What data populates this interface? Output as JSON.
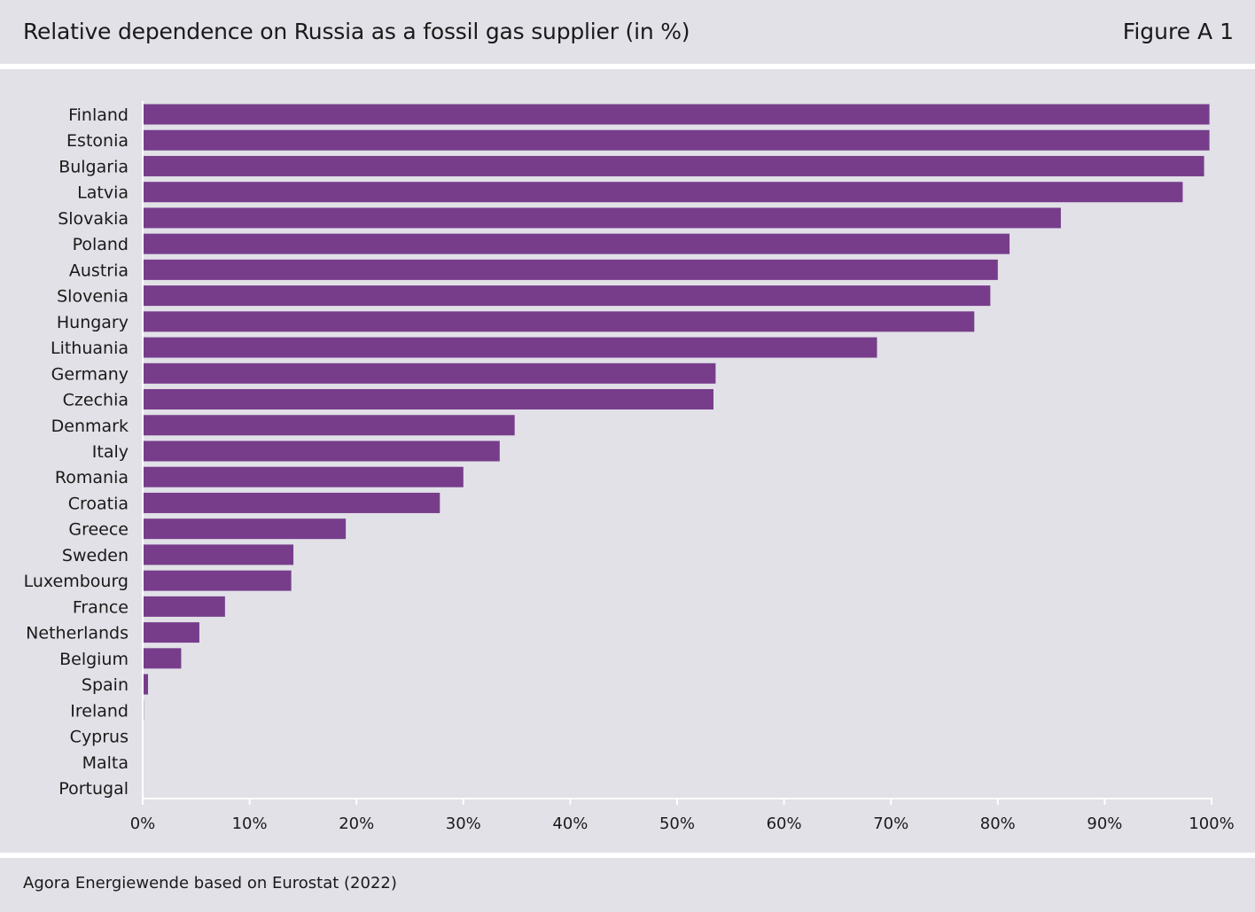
{
  "header": {
    "title": "Relative dependence on Russia as a fossil gas supplier (in %)",
    "figure_label": "Figure A 1"
  },
  "footer": {
    "source": "Agora Energiewende based on Eurostat (2022)"
  },
  "colors": {
    "bar": "#773d8b",
    "panel_background": "#e1e1e7",
    "axis": "#ffffff"
  },
  "chart_data": {
    "type": "bar",
    "orientation": "horizontal",
    "title": "Relative dependence on Russia as a fossil gas supplier (in %)",
    "xlabel": "",
    "ylabel": "",
    "xlim": [
      0,
      100
    ],
    "x_ticks": [
      "0%",
      "10%",
      "20%",
      "30%",
      "40%",
      "50%",
      "60%",
      "70%",
      "80%",
      "90%",
      "100%"
    ],
    "grid": false,
    "legend": "none",
    "categories": [
      "Finland",
      "Estonia",
      "Bulgaria",
      "Latvia",
      "Slovakia",
      "Poland",
      "Austria",
      "Slovenia",
      "Hungary",
      "Lithuania",
      "Germany",
      "Czechia",
      "Denmark",
      "Italy",
      "Romania",
      "Croatia",
      "Greece",
      "Sweden",
      "Luxembourg",
      "France",
      "Netherlands",
      "Belgium",
      "Spain",
      "Ireland",
      "Cyprus",
      "Malta",
      "Portugal"
    ],
    "values": [
      99.8,
      99.8,
      99.3,
      97.3,
      85.9,
      81.1,
      80.0,
      79.3,
      77.8,
      68.7,
      53.6,
      53.4,
      34.8,
      33.4,
      30.0,
      27.8,
      19.0,
      14.1,
      13.9,
      7.7,
      5.3,
      3.6,
      0.5,
      0.1,
      0,
      0,
      0
    ]
  }
}
